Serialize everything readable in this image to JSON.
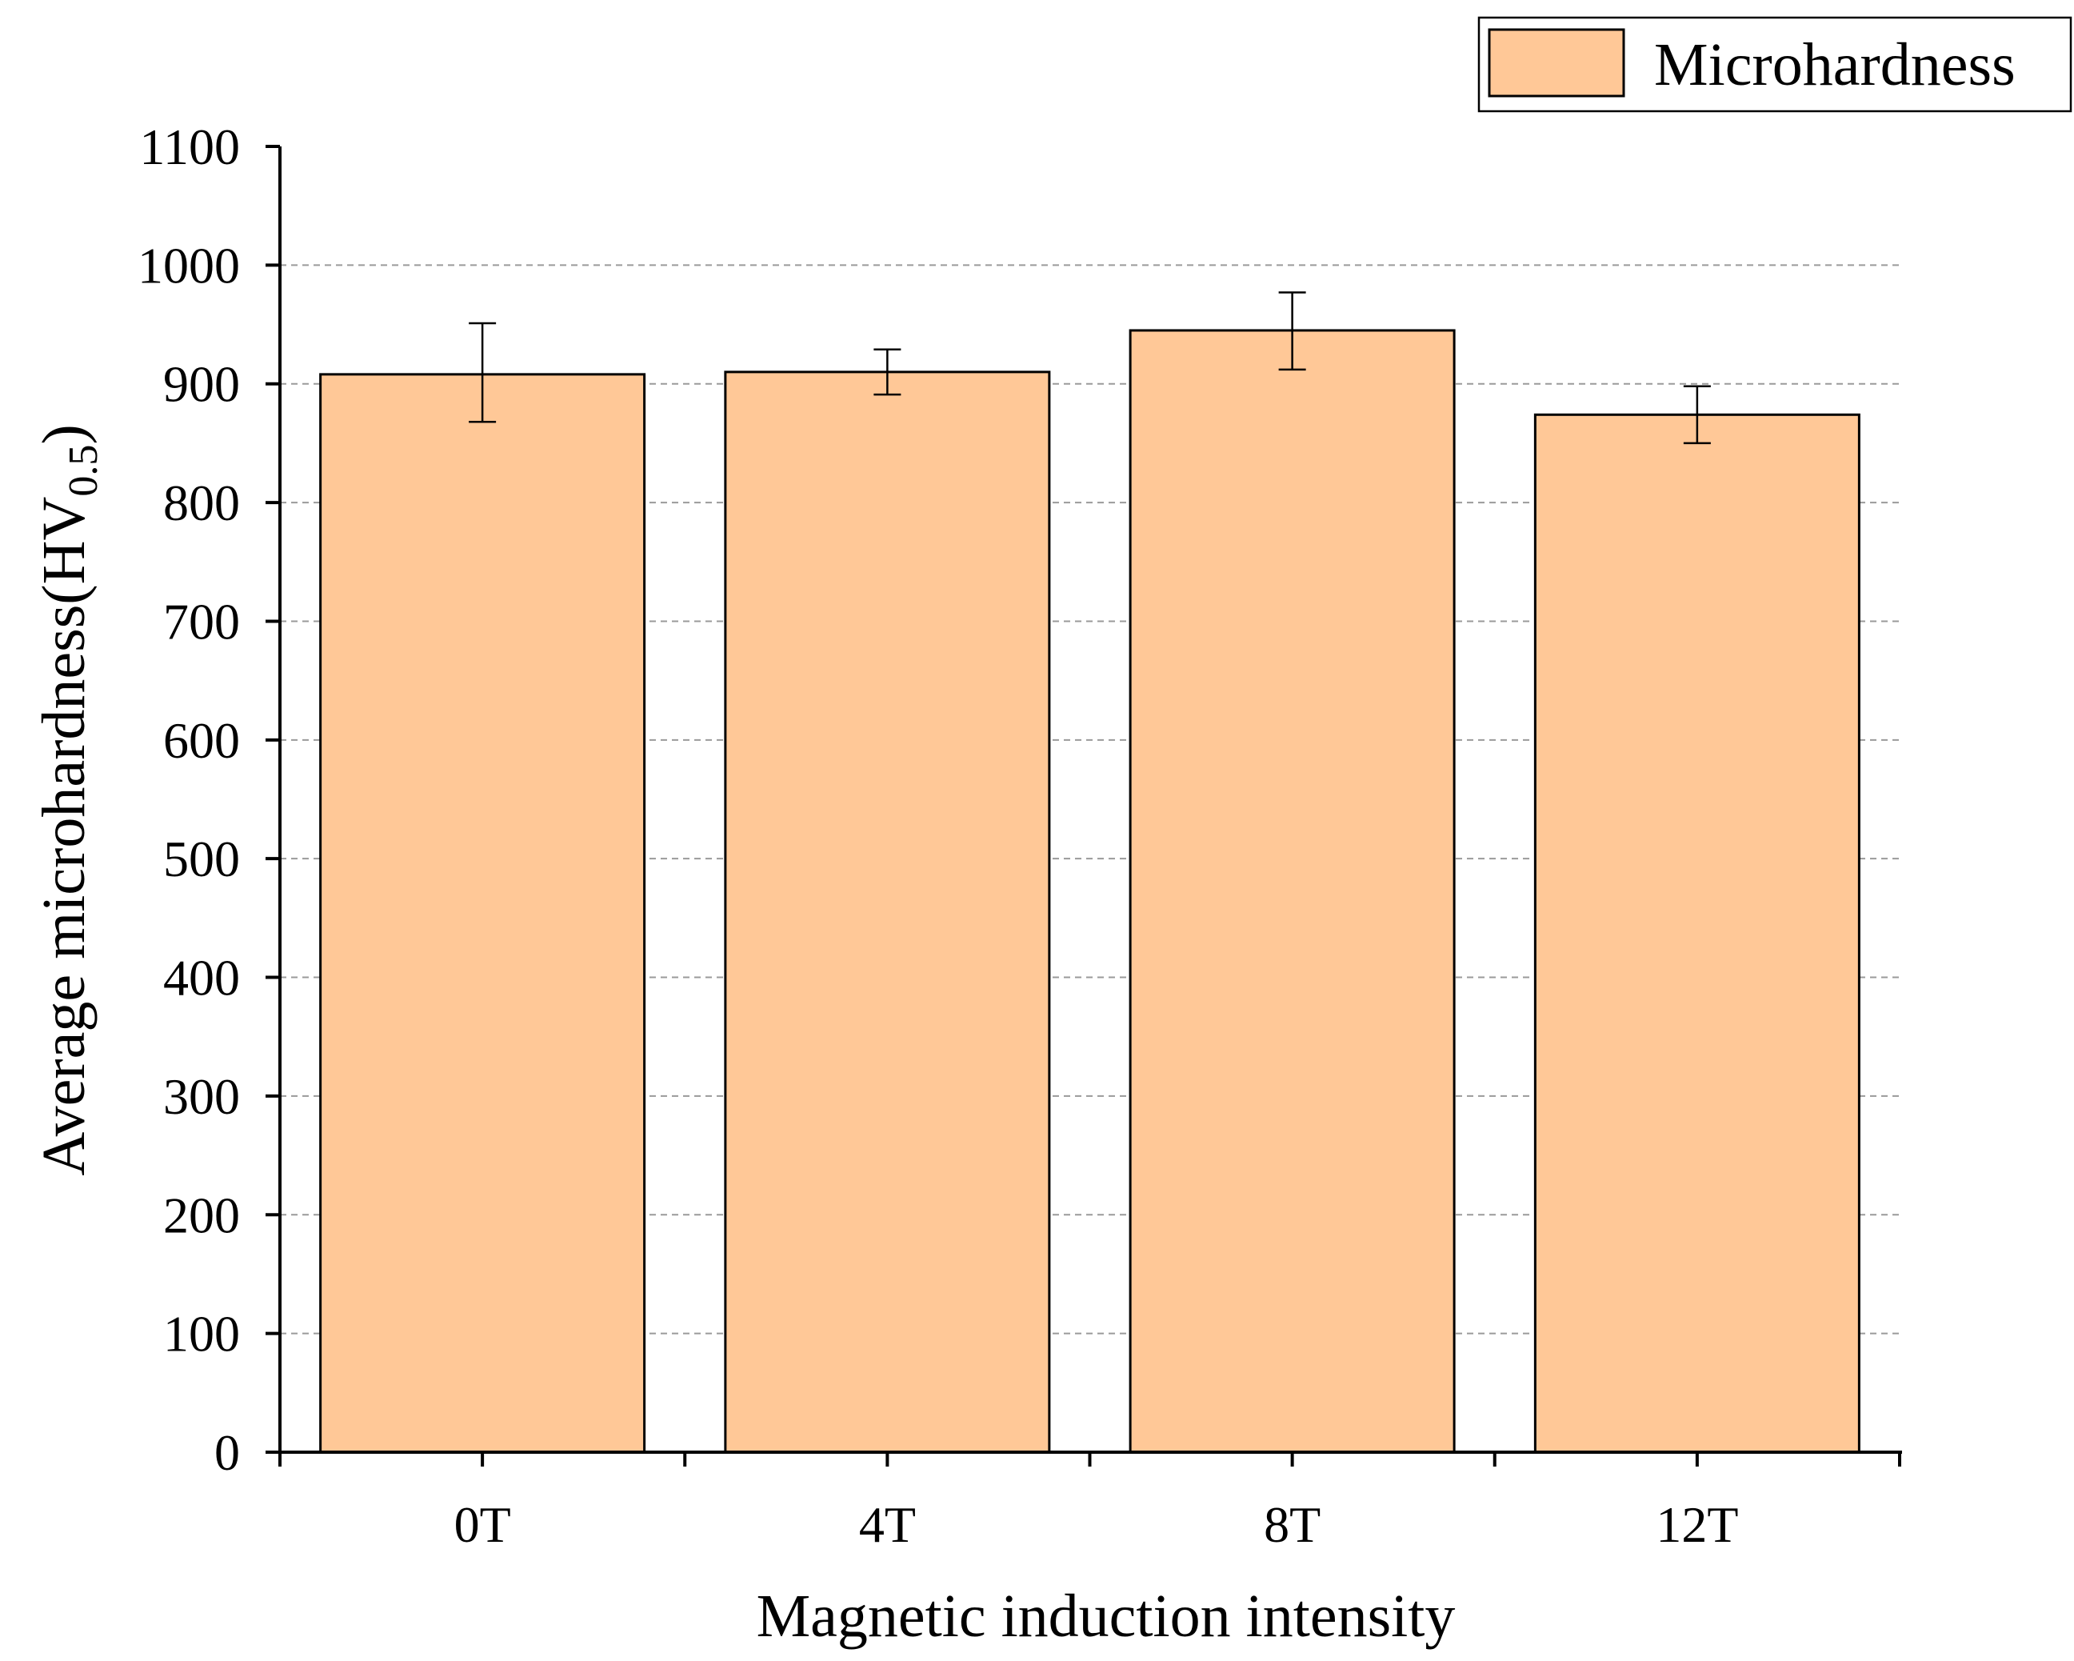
{
  "chart_data": {
    "type": "bar",
    "categories": [
      "0T",
      "4T",
      "8T",
      "12T"
    ],
    "series": [
      {
        "name": "Microhardness",
        "values": [
          908,
          910,
          945,
          874
        ],
        "error_low": [
          868,
          891,
          912,
          850
        ],
        "error_high": [
          951,
          929,
          977,
          898
        ]
      }
    ],
    "title": "",
    "xlabel": "Magnetic induction intensity",
    "ylabel": {
      "main": "Average microhardness(HV",
      "subscript": "0.5",
      "close": ")"
    },
    "ylim": [
      0,
      1100
    ],
    "yticks": [
      "0",
      "100",
      "200",
      "300",
      "400",
      "500",
      "600",
      "700",
      "800",
      "900",
      "1000",
      "1100"
    ],
    "grid": true,
    "legend": {
      "position": "top-right",
      "label": "Microhardness"
    },
    "colors": {
      "bar": "#FFC897",
      "edge": "#000000",
      "grid": "#9a9a9a"
    }
  }
}
